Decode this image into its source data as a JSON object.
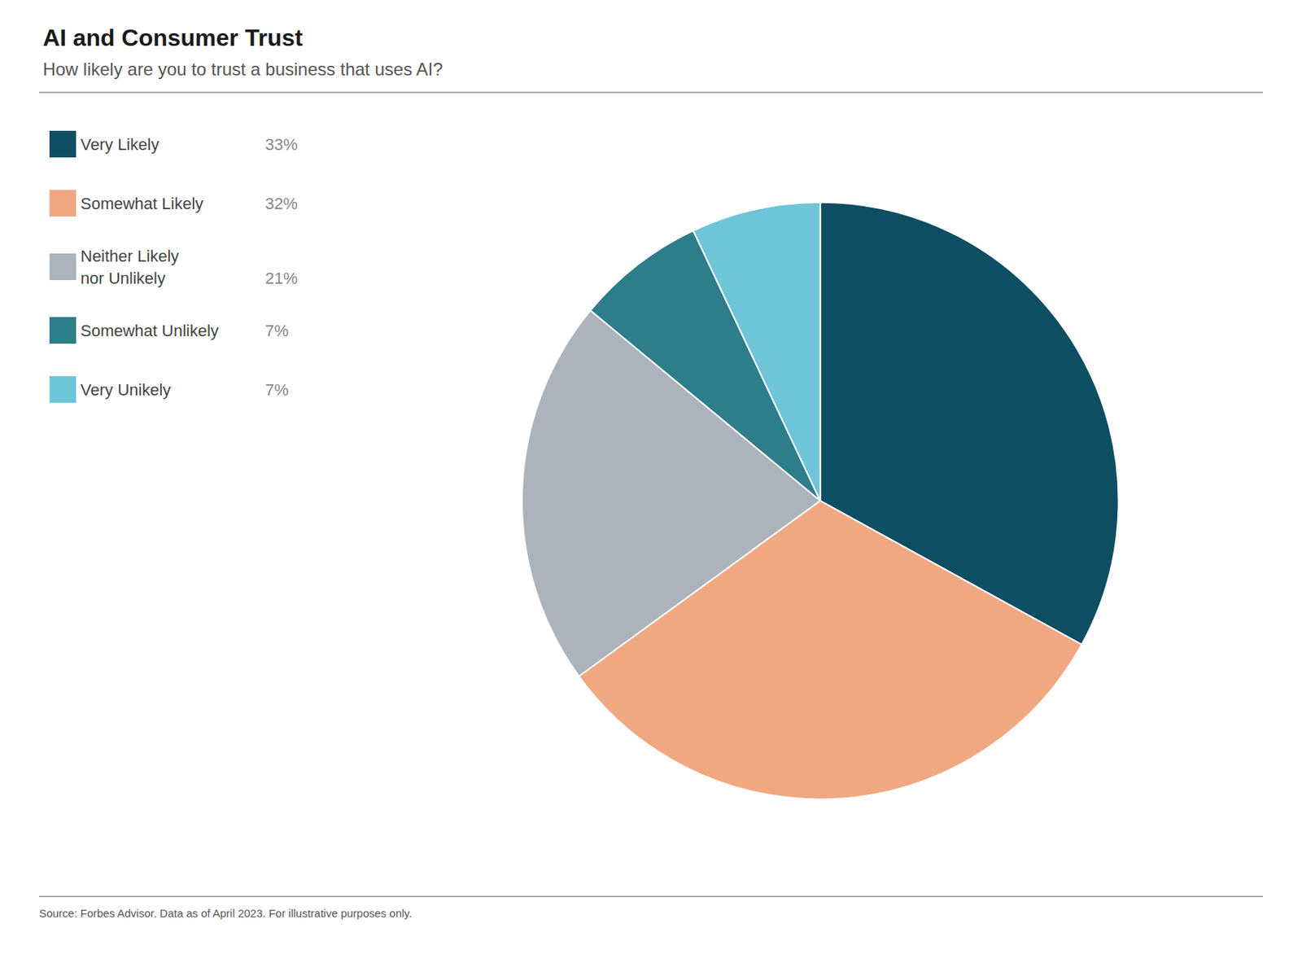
{
  "chart_data": {
    "type": "pie",
    "title": "AI and Consumer Trust",
    "subtitle": "How likely are you to trust a business that uses AI?",
    "annotations": [
      "Source: Forbes Advisor. Data as of April 2023. For illustrative purposes only."
    ],
    "categories": [
      "Very Likely",
      "Somewhat Likely",
      "Neither Likely\nnor Unlikely",
      "Somewhat Unlikely",
      "Very Unikely"
    ],
    "values": [
      33,
      32,
      21,
      7,
      7
    ],
    "value_labels": [
      "33%",
      "32%",
      "21%",
      "7%",
      "7%"
    ],
    "colors": [
      "#0d4e63",
      "#f0a882",
      "#adb3bc",
      "#2e7d8a",
      "#6ec5d8"
    ],
    "legend": "left"
  }
}
